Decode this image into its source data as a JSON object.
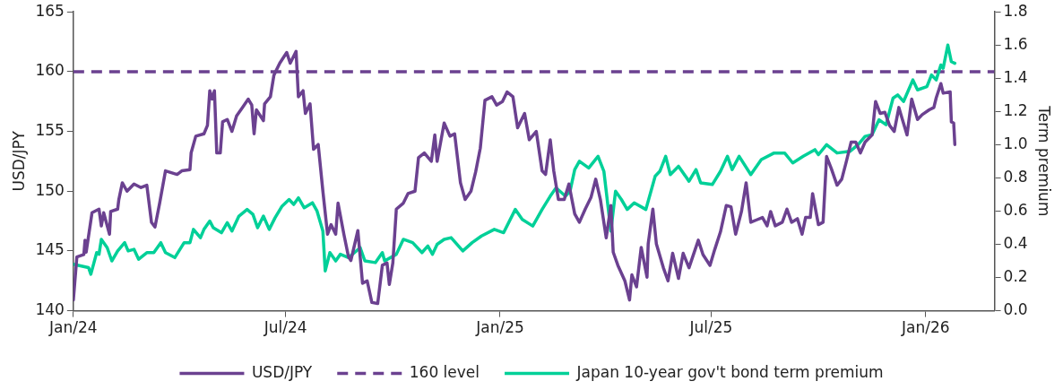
{
  "chart_data": {
    "type": "line",
    "ylabel": "USD/JPY",
    "y2label": "Term premium",
    "legend": "bottom",
    "grid": false,
    "marker": "none",
    "xlim": [
      "2024-01-01",
      "2026-03-01"
    ],
    "xticks": [
      {
        "value": "2024-01-01",
        "label": "Jan/24"
      },
      {
        "value": "2024-07-01",
        "label": "Jul/24"
      },
      {
        "value": "2025-01-01",
        "label": "Jan/25"
      },
      {
        "value": "2025-07-01",
        "label": "Jul/25"
      },
      {
        "value": "2026-01-01",
        "label": "Jan/26"
      }
    ],
    "ylim": [
      140,
      165
    ],
    "yticks": [
      140,
      145,
      150,
      155,
      160,
      165
    ],
    "y2lim": [
      0,
      1.8
    ],
    "y2ticks": [
      {
        "value": 0,
        "label": "0.0"
      },
      {
        "value": 0.2,
        "label": "0.2"
      },
      {
        "value": 0.4,
        "label": "0.4"
      },
      {
        "value": 0.6,
        "label": "0.6"
      },
      {
        "value": 0.8,
        "label": "0.8"
      },
      {
        "value": 1,
        "label": "1.0"
      },
      {
        "value": 1.2,
        "label": "1.2"
      },
      {
        "value": 1.4,
        "label": "1.4"
      },
      {
        "value": 1.6,
        "label": "1.6"
      },
      {
        "value": 1.8,
        "label": "1.8"
      }
    ],
    "ref_lines": [
      {
        "axis": "y",
        "value": 160,
        "label": "160 level",
        "color": "#6b4190",
        "line_style": "dashed"
      }
    ],
    "series": [
      {
        "name": "USD/JPY",
        "color": "#6b4190",
        "line_style": "solid",
        "x": [
          "2024-01-01",
          "2024-01-04",
          "2024-01-10",
          "2024-01-11",
          "2024-01-12",
          "2024-01-17",
          "2024-01-23",
          "2024-01-25",
          "2024-01-27",
          "2024-02-01",
          "2024-02-02",
          "2024-02-08",
          "2024-02-09",
          "2024-02-12",
          "2024-02-16",
          "2024-02-22",
          "2024-02-28",
          "2024-03-04",
          "2024-03-08",
          "2024-03-11",
          "2024-03-15",
          "2024-03-20",
          "2024-03-30",
          "2024-04-03",
          "2024-04-10",
          "2024-04-11",
          "2024-04-15",
          "2024-04-22",
          "2024-04-25",
          "2024-04-27",
          "2024-04-29",
          "2024-05-01",
          "2024-05-03",
          "2024-05-06",
          "2024-05-08",
          "2024-05-12",
          "2024-05-16",
          "2024-05-20",
          "2024-05-25",
          "2024-05-30",
          "2024-06-02",
          "2024-06-04",
          "2024-06-06",
          "2024-06-12",
          "2024-06-13",
          "2024-06-18",
          "2024-06-21",
          "2024-06-26",
          "2024-07-02",
          "2024-07-05",
          "2024-07-10",
          "2024-07-12",
          "2024-07-16",
          "2024-07-18",
          "2024-07-22",
          "2024-07-25",
          "2024-07-29",
          "2024-08-02",
          "2024-08-06",
          "2024-08-09",
          "2024-08-13",
          "2024-08-15",
          "2024-08-20",
          "2024-08-24",
          "2024-08-26",
          "2024-09-01",
          "2024-09-05",
          "2024-09-09",
          "2024-09-13",
          "2024-09-18",
          "2024-09-22",
          "2024-09-26",
          "2024-09-28",
          "2024-10-01",
          "2024-10-04",
          "2024-10-10",
          "2024-10-14",
          "2024-10-20",
          "2024-10-23",
          "2024-10-28",
          "2024-11-03",
          "2024-11-06",
          "2024-11-08",
          "2024-11-14",
          "2024-11-19",
          "2024-11-23",
          "2024-11-28",
          "2024-12-02",
          "2024-12-07",
          "2024-12-11",
          "2024-12-15",
          "2024-12-19",
          "2024-12-25",
          "2024-12-29",
          "2025-01-03",
          "2025-01-07",
          "2025-01-12",
          "2025-01-16",
          "2025-01-22",
          "2025-01-26",
          "2025-02-01",
          "2025-02-06",
          "2025-02-09",
          "2025-02-13",
          "2025-02-16",
          "2025-02-20",
          "2025-02-25",
          "2025-03-01",
          "2025-03-06",
          "2025-03-10",
          "2025-03-15",
          "2025-03-20",
          "2025-03-24",
          "2025-03-28",
          "2025-04-02",
          "2025-04-06",
          "2025-04-08",
          "2025-04-12",
          "2025-04-18",
          "2025-04-22",
          "2025-04-24",
          "2025-04-28",
          "2025-05-02",
          "2025-05-07",
          "2025-05-08",
          "2025-05-12",
          "2025-05-15",
          "2025-05-21",
          "2025-05-25",
          "2025-05-29",
          "2025-06-03",
          "2025-06-07",
          "2025-06-12",
          "2025-06-20",
          "2025-06-24",
          "2025-06-30",
          "2025-07-04",
          "2025-07-09",
          "2025-07-14",
          "2025-07-18",
          "2025-07-22",
          "2025-07-27",
          "2025-07-31",
          "2025-08-04",
          "2025-08-09",
          "2025-08-14",
          "2025-08-18",
          "2025-08-21",
          "2025-08-25",
          "2025-08-31",
          "2025-09-04",
          "2025-09-08",
          "2025-09-13",
          "2025-09-17",
          "2025-09-20",
          "2025-09-24",
          "2025-09-26",
          "2025-10-01",
          "2025-10-05",
          "2025-10-08",
          "2025-10-12",
          "2025-10-17",
          "2025-10-21",
          "2025-10-25",
          "2025-10-29",
          "2025-11-02",
          "2025-11-06",
          "2025-11-10",
          "2025-11-16",
          "2025-11-19",
          "2025-11-23",
          "2025-11-27",
          "2025-12-01",
          "2025-12-05",
          "2025-12-09",
          "2025-12-12",
          "2025-12-16",
          "2025-12-20",
          "2025-12-25",
          "2025-12-29",
          "2026-01-04",
          "2026-01-08",
          "2026-01-10",
          "2026-01-14",
          "2026-01-16",
          "2026-01-22",
          "2026-01-23",
          "2026-01-25",
          "2026-01-26"
        ],
        "values": [
          140.9,
          144.5,
          144.7,
          145.9,
          144.9,
          148.2,
          148.5,
          147.1,
          148.2,
          146.4,
          148.3,
          148.5,
          149.3,
          150.7,
          150.0,
          150.6,
          150.3,
          150.5,
          147.4,
          147.0,
          149.0,
          151.7,
          151.4,
          151.7,
          151.8,
          153.2,
          154.6,
          154.8,
          155.5,
          158.4,
          157.7,
          158.4,
          153.2,
          153.2,
          155.8,
          156.0,
          155.0,
          156.3,
          157.0,
          157.7,
          157.2,
          154.8,
          156.8,
          155.9,
          157.3,
          157.9,
          159.7,
          160.7,
          161.6,
          160.7,
          161.7,
          157.9,
          158.4,
          156.5,
          157.3,
          153.5,
          153.9,
          150.0,
          146.4,
          147.2,
          146.4,
          149.0,
          146.4,
          144.5,
          144.2,
          146.7,
          142.3,
          142.5,
          140.7,
          140.6,
          143.8,
          144.0,
          142.2,
          144.0,
          148.5,
          149.0,
          149.8,
          150.0,
          152.8,
          153.2,
          152.5,
          154.7,
          152.5,
          155.7,
          154.6,
          154.8,
          150.7,
          149.3,
          150.0,
          151.6,
          153.6,
          157.6,
          157.9,
          157.2,
          157.5,
          158.3,
          157.9,
          155.3,
          156.5,
          154.3,
          155.0,
          151.7,
          151.4,
          154.3,
          151.7,
          149.3,
          149.3,
          150.6,
          148.1,
          147.4,
          148.5,
          149.5,
          151.0,
          149.3,
          146.1,
          148.8,
          144.9,
          143.8,
          142.5,
          140.9,
          143.0,
          142.0,
          145.3,
          142.8,
          145.6,
          148.5,
          145.6,
          143.6,
          142.5,
          144.8,
          142.7,
          144.8,
          143.6,
          145.9,
          144.7,
          143.8,
          145.1,
          146.6,
          148.8,
          148.7,
          146.4,
          148.3,
          150.7,
          147.4,
          147.6,
          147.8,
          147.1,
          148.3,
          147.1,
          147.4,
          148.5,
          147.4,
          147.7,
          146.4,
          147.8,
          147.8,
          149.8,
          147.2,
          147.4,
          152.9,
          151.9,
          150.5,
          151.0,
          152.5,
          154.1,
          154.1,
          153.2,
          154.1,
          154.7,
          157.5,
          156.5,
          156.6,
          155.5,
          155.0,
          157.0,
          156.0,
          154.7,
          157.7,
          156.0,
          156.4,
          156.8,
          157.0,
          157.8,
          159.0,
          158.2,
          158.3,
          155.8,
          155.7,
          153.9
        ]
      },
      {
        "name": "Japan 10-year gov't bond term premium",
        "color": "#00d098",
        "line_style": "solid",
        "axis": "y2",
        "x": [
          "2024-01-01",
          "2024-01-14",
          "2024-01-16",
          "2024-01-21",
          "2024-01-23",
          "2024-01-25",
          "2024-01-30",
          "2024-02-03",
          "2024-02-08",
          "2024-02-14",
          "2024-02-17",
          "2024-02-22",
          "2024-02-26",
          "2024-03-04",
          "2024-03-10",
          "2024-03-16",
          "2024-03-20",
          "2024-03-28",
          "2024-04-05",
          "2024-04-10",
          "2024-04-13",
          "2024-04-19",
          "2024-04-22",
          "2024-04-27",
          "2024-04-30",
          "2024-05-07",
          "2024-05-12",
          "2024-05-16",
          "2024-05-22",
          "2024-05-29",
          "2024-06-03",
          "2024-06-07",
          "2024-06-12",
          "2024-06-17",
          "2024-06-22",
          "2024-06-28",
          "2024-07-04",
          "2024-07-08",
          "2024-07-12",
          "2024-07-17",
          "2024-07-24",
          "2024-07-28",
          "2024-08-02",
          "2024-08-04",
          "2024-08-08",
          "2024-08-13",
          "2024-08-17",
          "2024-08-24",
          "2024-09-03",
          "2024-09-07",
          "2024-09-16",
          "2024-09-22",
          "2024-09-24",
          "2024-10-04",
          "2024-10-10",
          "2024-10-18",
          "2024-10-26",
          "2024-10-31",
          "2024-11-04",
          "2024-11-08",
          "2024-11-14",
          "2024-11-20",
          "2024-11-30",
          "2024-12-08",
          "2024-12-16",
          "2024-12-27",
          "2025-01-04",
          "2025-01-14",
          "2025-01-20",
          "2025-01-29",
          "2025-02-06",
          "2025-02-13",
          "2025-02-18",
          "2025-02-26",
          "2025-03-02",
          "2025-03-06",
          "2025-03-10",
          "2025-03-18",
          "2025-03-26",
          "2025-03-31",
          "2025-04-06",
          "2025-04-10",
          "2025-04-15",
          "2025-04-20",
          "2025-04-26",
          "2025-05-06",
          "2025-05-14",
          "2025-05-18",
          "2025-05-23",
          "2025-05-27",
          "2025-06-03",
          "2025-06-12",
          "2025-06-18",
          "2025-06-22",
          "2025-07-02",
          "2025-07-09",
          "2025-07-15",
          "2025-07-19",
          "2025-07-25",
          "2025-08-04",
          "2025-08-13",
          "2025-08-24",
          "2025-09-02",
          "2025-09-09",
          "2025-09-18",
          "2025-09-28",
          "2025-10-01",
          "2025-10-08",
          "2025-10-17",
          "2025-10-28",
          "2025-11-04",
          "2025-11-10",
          "2025-11-16",
          "2025-11-22",
          "2025-11-28",
          "2025-12-04",
          "2025-12-08",
          "2025-12-13",
          "2025-12-21",
          "2025-12-25",
          "2026-01-02",
          "2026-01-06",
          "2026-01-10",
          "2026-01-14",
          "2026-01-16",
          "2026-01-20",
          "2026-01-23",
          "2026-01-26"
        ],
        "values": [
          0.28,
          0.26,
          0.22,
          0.35,
          0.34,
          0.43,
          0.38,
          0.3,
          0.36,
          0.41,
          0.36,
          0.37,
          0.31,
          0.35,
          0.35,
          0.41,
          0.35,
          0.32,
          0.41,
          0.41,
          0.49,
          0.44,
          0.49,
          0.54,
          0.5,
          0.47,
          0.53,
          0.48,
          0.57,
          0.61,
          0.58,
          0.5,
          0.57,
          0.49,
          0.56,
          0.63,
          0.67,
          0.64,
          0.68,
          0.62,
          0.65,
          0.6,
          0.48,
          0.24,
          0.35,
          0.3,
          0.34,
          0.32,
          0.38,
          0.3,
          0.29,
          0.35,
          0.3,
          0.34,
          0.43,
          0.41,
          0.35,
          0.39,
          0.34,
          0.4,
          0.43,
          0.44,
          0.36,
          0.41,
          0.45,
          0.49,
          0.47,
          0.61,
          0.55,
          0.51,
          0.61,
          0.69,
          0.74,
          0.69,
          0.72,
          0.85,
          0.9,
          0.86,
          0.93,
          0.84,
          0.48,
          0.72,
          0.67,
          0.61,
          0.65,
          0.61,
          0.81,
          0.84,
          0.93,
          0.82,
          0.87,
          0.78,
          0.85,
          0.77,
          0.76,
          0.84,
          0.93,
          0.85,
          0.93,
          0.82,
          0.91,
          0.95,
          0.95,
          0.89,
          0.93,
          0.97,
          0.94,
          1.0,
          0.95,
          0.96,
          1.0,
          1.05,
          1.06,
          1.15,
          1.12,
          1.28,
          1.3,
          1.26,
          1.39,
          1.33,
          1.35,
          1.42,
          1.39,
          1.48,
          1.46,
          1.6,
          1.5,
          1.49
        ]
      }
    ]
  }
}
